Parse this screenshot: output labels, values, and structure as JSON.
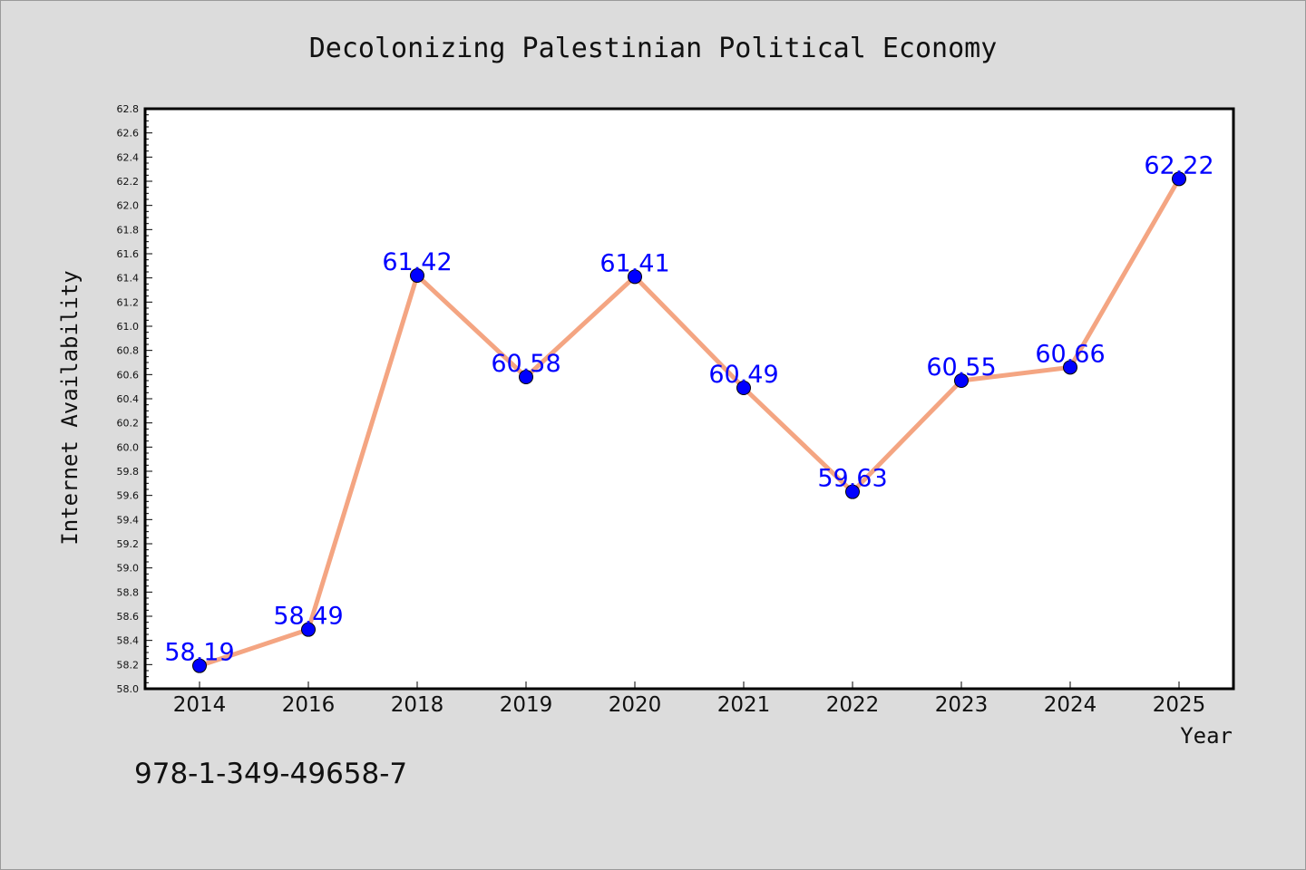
{
  "chart_data": {
    "type": "line",
    "title": "Decolonizing Palestinian Political Economy",
    "xlabel": "Year",
    "ylabel": "Internet Availability",
    "categories": [
      "2014",
      "2016",
      "2018",
      "2019",
      "2020",
      "2021",
      "2022",
      "2023",
      "2024",
      "2025"
    ],
    "series": [
      {
        "values": [
          58.19,
          58.49,
          61.42,
          60.58,
          61.41,
          60.49,
          59.63,
          60.55,
          60.66,
          62.22
        ],
        "data_labels": [
          "58.19",
          "58.49",
          "61.42",
          "60.58",
          "61.41",
          "60.49",
          "59.63",
          "60.55",
          "60.66",
          "62.22"
        ],
        "line_color": "#f4a582",
        "marker_color": "#0000ff"
      }
    ],
    "ylim": [
      58.0,
      62.8
    ],
    "yticks": [
      "58.0",
      "58.2",
      "58.4",
      "58.6",
      "58.8",
      "59.0",
      "59.2",
      "59.4",
      "59.6",
      "59.8",
      "60.0",
      "60.2",
      "60.4",
      "60.6",
      "60.8",
      "61.0",
      "61.2",
      "61.4",
      "61.6",
      "61.8",
      "62.0",
      "62.2",
      "62.4",
      "62.6",
      "62.8"
    ],
    "grid": false,
    "legend": "none"
  },
  "footer": {
    "isbn": "978-1-349-49658-7"
  },
  "colors": {
    "background": "#dcdcdc",
    "plot_background": "#ffffff",
    "label_color": "#0000ff"
  }
}
